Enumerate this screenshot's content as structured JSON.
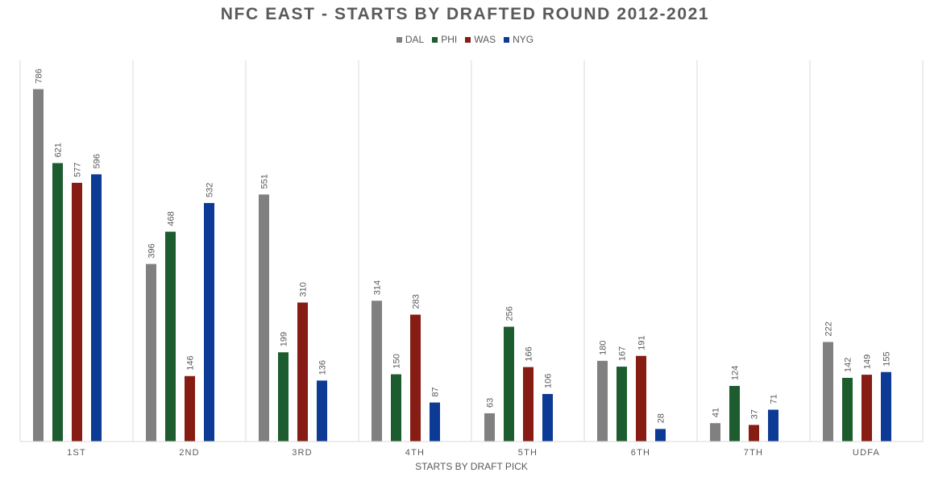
{
  "chart_data": {
    "type": "bar",
    "title": "NFC EAST - STARTS BY DRAFTED ROUND 2012-2021",
    "xlabel": "STARTS BY DRAFT PICK",
    "ylabel": "",
    "ylim": [
      0,
      850
    ],
    "grid": "vertical category separators",
    "legend_position": "top",
    "categories": [
      "1ST",
      "2ND",
      "3RD",
      "4TH",
      "5TH",
      "6TH",
      "7TH",
      "UDFA"
    ],
    "series": [
      {
        "name": "DAL",
        "color": "#808080",
        "values": [
          786,
          396,
          551,
          314,
          63,
          180,
          41,
          222
        ]
      },
      {
        "name": "PHI",
        "color": "#1d5c2e",
        "values": [
          621,
          468,
          199,
          150,
          256,
          167,
          124,
          142
        ]
      },
      {
        "name": "WAS",
        "color": "#861c14",
        "values": [
          577,
          146,
          310,
          283,
          166,
          191,
          37,
          149
        ]
      },
      {
        "name": "NYG",
        "color": "#0d3a94",
        "values": [
          596,
          532,
          136,
          87,
          106,
          28,
          71,
          155
        ]
      }
    ]
  }
}
